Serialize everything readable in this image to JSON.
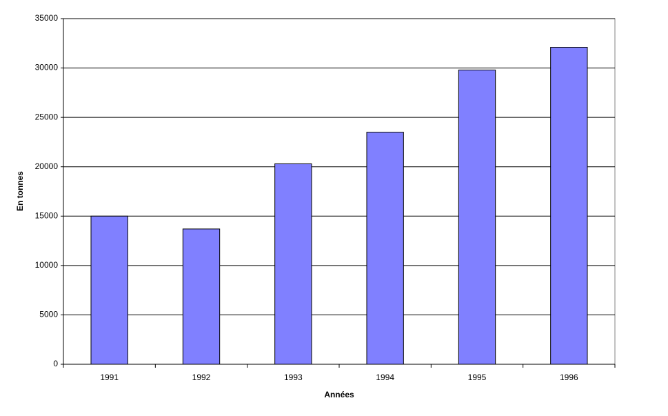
{
  "chart_data": {
    "type": "bar",
    "x_label": "Années",
    "y_label": "En tonnes",
    "categories": [
      "1991",
      "1992",
      "1993",
      "1994",
      "1995",
      "1996"
    ],
    "values": [
      15000,
      13700,
      20300,
      23500,
      29800,
      32100
    ],
    "color": "#8080ff",
    "ylim": [
      0,
      35000
    ],
    "yticks": [
      0,
      5000,
      10000,
      15000,
      20000,
      25000,
      30000,
      35000
    ],
    "grid": true
  }
}
